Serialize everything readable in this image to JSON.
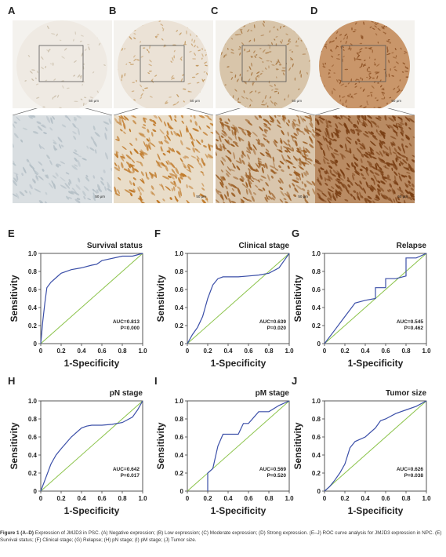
{
  "histology": {
    "panels": [
      {
        "letter": "A",
        "top_scale": "50 μm",
        "bottom_scale": "50 μm",
        "top_bg": "#efeae3",
        "top_stain": "#c9bda8",
        "bottom_bg": "#d9dee1",
        "bottom_stain": "#b4bfc6",
        "density": 0.35
      },
      {
        "letter": "B",
        "top_scale": "50 μm",
        "bottom_scale": "50 μm",
        "top_bg": "#ebe2d6",
        "top_stain": "#c39a62",
        "bottom_bg": "#e9ddc9",
        "bottom_stain": "#c07a2a",
        "density": 0.55
      },
      {
        "letter": "C",
        "top_scale": "50 μm",
        "bottom_scale": "50 μm",
        "top_bg": "#d8c5aa",
        "top_stain": "#a87844",
        "bottom_bg": "#d9c6ad",
        "bottom_stain": "#9c5f25",
        "density": 0.8
      },
      {
        "letter": "D",
        "top_scale": "50 μm",
        "bottom_scale": "50 μm",
        "top_bg": "#c9966a",
        "top_stain": "#8e5225",
        "bottom_bg": "#b98b63",
        "bottom_stain": "#7a3f14",
        "density": 1.0
      }
    ]
  },
  "roc": {
    "xlabel": "1-Specificity",
    "ylabel": "Sensitivity",
    "ticks_y": [
      "0",
      "0.2",
      "0.4",
      "0.6",
      "0.8",
      "1.0"
    ],
    "ticks_x": [
      "0",
      "0.2",
      "0.4",
      "0.6",
      "0.8",
      "1.0"
    ],
    "curve_color": "#3b4fa8",
    "ref_color": "#8bc34a"
  },
  "chart_data": [
    {
      "letter": "E",
      "type": "line",
      "title": "Survival status",
      "auc": "AUC=0.813",
      "p": "P=0.000",
      "xlim": [
        0,
        1
      ],
      "ylim": [
        0,
        1
      ],
      "x": [
        0,
        0.02,
        0.04,
        0.06,
        0.1,
        0.15,
        0.2,
        0.3,
        0.4,
        0.5,
        0.55,
        0.6,
        0.8,
        0.9,
        1.0
      ],
      "y": [
        0,
        0.25,
        0.45,
        0.62,
        0.68,
        0.73,
        0.78,
        0.82,
        0.84,
        0.87,
        0.88,
        0.92,
        0.97,
        0.97,
        1.0
      ]
    },
    {
      "letter": "F",
      "type": "line",
      "title": "Clinical stage",
      "auc": "AUC=0.639",
      "p": "P=0.020",
      "xlim": [
        0,
        1
      ],
      "ylim": [
        0,
        1
      ],
      "x": [
        0,
        0.05,
        0.1,
        0.15,
        0.2,
        0.25,
        0.3,
        0.35,
        0.4,
        0.5,
        0.6,
        0.7,
        0.8,
        0.9,
        0.95,
        1.0
      ],
      "y": [
        0,
        0.1,
        0.18,
        0.3,
        0.5,
        0.65,
        0.72,
        0.74,
        0.74,
        0.74,
        0.75,
        0.76,
        0.78,
        0.84,
        0.92,
        1.0
      ]
    },
    {
      "letter": "G",
      "type": "line",
      "title": "Relapse",
      "auc": "AUC=0.545",
      "p": "P=0.462",
      "xlim": [
        0,
        1
      ],
      "ylim": [
        0,
        1
      ],
      "x": [
        0,
        0.1,
        0.2,
        0.3,
        0.4,
        0.5,
        0.5,
        0.6,
        0.6,
        0.7,
        0.8,
        0.8,
        0.9,
        1.0
      ],
      "y": [
        0,
        0.15,
        0.3,
        0.45,
        0.48,
        0.5,
        0.62,
        0.62,
        0.72,
        0.72,
        0.75,
        0.95,
        0.95,
        1.0
      ]
    },
    {
      "letter": "H",
      "type": "line",
      "title": "pN stage",
      "auc": "AUC=0.642",
      "p": "P=0.017",
      "xlim": [
        0,
        1
      ],
      "ylim": [
        0,
        1
      ],
      "x": [
        0,
        0.05,
        0.1,
        0.15,
        0.2,
        0.3,
        0.4,
        0.45,
        0.5,
        0.6,
        0.7,
        0.8,
        0.9,
        0.95,
        1.0
      ],
      "y": [
        0,
        0.15,
        0.3,
        0.4,
        0.47,
        0.6,
        0.7,
        0.72,
        0.73,
        0.73,
        0.74,
        0.76,
        0.82,
        0.9,
        1.0
      ]
    },
    {
      "letter": "I",
      "type": "line",
      "title": "pM stage",
      "auc": "AUC=0.569",
      "p": "P=0.520",
      "xlim": [
        0,
        1
      ],
      "ylim": [
        0,
        1
      ],
      "x": [
        0.2,
        0.2,
        0.25,
        0.3,
        0.35,
        0.4,
        0.5,
        0.55,
        0.6,
        0.7,
        0.8,
        0.9,
        1.0
      ],
      "y": [
        0,
        0.2,
        0.25,
        0.5,
        0.63,
        0.63,
        0.63,
        0.75,
        0.75,
        0.88,
        0.88,
        0.95,
        1.0
      ]
    },
    {
      "letter": "J",
      "type": "line",
      "title": "Tumor size",
      "auc": "AUC=0.626",
      "p": "P=0.038",
      "xlim": [
        0,
        1
      ],
      "ylim": [
        0,
        1
      ],
      "x": [
        0,
        0.05,
        0.1,
        0.15,
        0.2,
        0.25,
        0.3,
        0.4,
        0.5,
        0.55,
        0.6,
        0.7,
        0.8,
        0.9,
        1.0
      ],
      "y": [
        0,
        0.05,
        0.12,
        0.2,
        0.3,
        0.48,
        0.55,
        0.6,
        0.7,
        0.78,
        0.8,
        0.86,
        0.9,
        0.94,
        1.0
      ]
    }
  ],
  "caption": {
    "bold_lead": "Figure 1 (A–D)",
    "text": " Expression of JMJD3 in PSC. (A) Negative expression; (B) Low expression; (C) Moderate expression; (D) Strong expression. (E–J) ROC curve analysis for JMJD3 expression in NPC. (E) Survival status; (F) Clinical stage; (G) Relapse; (H) pN stage; (I) pM stage; (J) Tumor size."
  }
}
